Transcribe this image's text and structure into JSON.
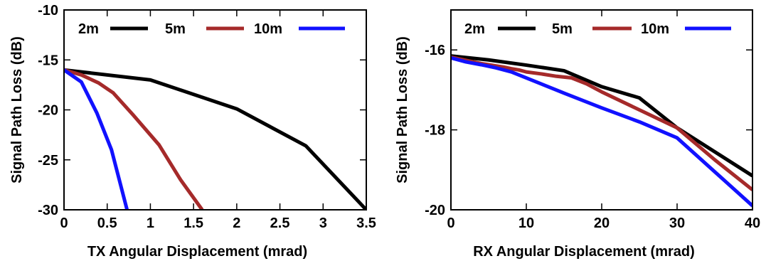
{
  "chart_data": [
    {
      "type": "line",
      "title": "",
      "xlabel": "TX Angular Displacement (mrad)",
      "ylabel": "Signal Path Loss (dB)",
      "xlim": [
        0,
        3.5
      ],
      "ylim": [
        -30,
        -10
      ],
      "xticks": [
        0,
        0.5,
        1,
        1.5,
        2,
        2.5,
        3,
        3.5
      ],
      "xtick_labels": [
        "0",
        "0.5",
        "1",
        "1.5",
        "2",
        "2.5",
        "3",
        "3.5"
      ],
      "yticks": [
        -30,
        -25,
        -20,
        -15,
        -10
      ],
      "ytick_labels": [
        "-30",
        "-25",
        "-20",
        "-15",
        "-10"
      ],
      "grid": false,
      "legend_position": "top",
      "series": [
        {
          "name": "2m",
          "color": "#000000",
          "x": [
            0,
            1.0,
            2.0,
            2.8,
            3.5
          ],
          "y": [
            -16.0,
            -17.0,
            -19.9,
            -23.6,
            -30.0
          ]
        },
        {
          "name": "5m",
          "color": "#a52a2a",
          "x": [
            0,
            0.2,
            0.4,
            0.57,
            0.8,
            1.1,
            1.35,
            1.6
          ],
          "y": [
            -16.0,
            -16.5,
            -17.3,
            -18.3,
            -20.5,
            -23.5,
            -27.0,
            -30.0
          ]
        },
        {
          "name": "10m",
          "color": "#1111ff",
          "x": [
            0,
            0.2,
            0.38,
            0.55,
            0.73
          ],
          "y": [
            -16.0,
            -17.2,
            -20.3,
            -24.0,
            -30.0
          ]
        }
      ]
    },
    {
      "type": "line",
      "title": "",
      "xlabel": "RX Angular Displacement (mrad)",
      "ylabel": "Signal Path Loss (dB)",
      "xlim": [
        0,
        40
      ],
      "ylim": [
        -20,
        -15
      ],
      "xticks": [
        0,
        10,
        20,
        30,
        40
      ],
      "xtick_labels": [
        "0",
        "10",
        "20",
        "30",
        "40"
      ],
      "yticks": [
        -20,
        -18,
        -16
      ],
      "ytick_labels": [
        "-20",
        "-18",
        "-16"
      ],
      "grid": false,
      "legend_position": "top",
      "series": [
        {
          "name": "2m",
          "color": "#000000",
          "x": [
            0,
            5,
            10,
            15,
            20,
            25,
            30,
            35,
            40
          ],
          "y": [
            -16.15,
            -16.25,
            -16.38,
            -16.52,
            -16.92,
            -17.2,
            -17.95,
            -18.55,
            -19.15
          ]
        },
        {
          "name": "5m",
          "color": "#a52a2a",
          "x": [
            0,
            1,
            2,
            3,
            4,
            5,
            6,
            7,
            8,
            9,
            10,
            12,
            14,
            16,
            18,
            20,
            25,
            30,
            35,
            40
          ],
          "y": [
            -16.18,
            -16.22,
            -16.26,
            -16.3,
            -16.34,
            -16.37,
            -16.4,
            -16.43,
            -16.47,
            -16.5,
            -16.55,
            -16.6,
            -16.66,
            -16.7,
            -16.85,
            -17.05,
            -17.5,
            -17.95,
            -18.75,
            -19.5
          ]
        },
        {
          "name": "10m",
          "color": "#1111ff",
          "x": [
            0,
            2,
            4,
            6,
            8,
            10,
            15,
            20,
            25,
            30,
            35,
            40
          ],
          "y": [
            -16.2,
            -16.3,
            -16.37,
            -16.45,
            -16.55,
            -16.7,
            -17.08,
            -17.45,
            -17.8,
            -18.2,
            -19.05,
            -19.9
          ]
        }
      ]
    }
  ]
}
